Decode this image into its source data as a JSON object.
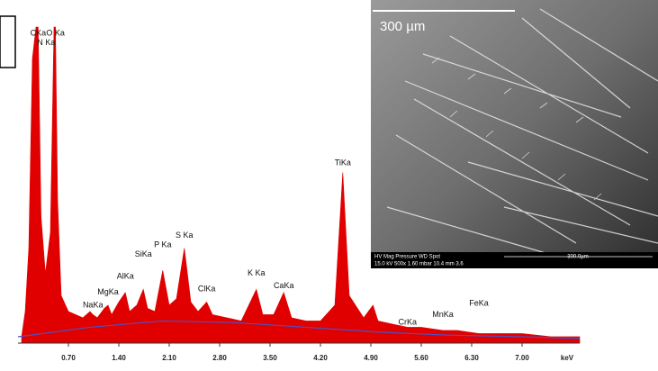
{
  "chart_data": {
    "type": "area",
    "x_label": "keV",
    "xlim": [
      0,
      7.8
    ],
    "ylim": [
      0,
      100
    ],
    "xticks": [
      {
        "value": 0.7,
        "label": "0.70"
      },
      {
        "value": 1.4,
        "label": "1.40"
      },
      {
        "value": 2.1,
        "label": "2.10"
      },
      {
        "value": 2.8,
        "label": "2.80"
      },
      {
        "value": 3.5,
        "label": "3.50"
      },
      {
        "value": 4.2,
        "label": "4.20"
      },
      {
        "value": 4.9,
        "label": "4.90"
      },
      {
        "value": 5.6,
        "label": "5.60"
      },
      {
        "value": 6.3,
        "label": "6.30"
      },
      {
        "value": 7.0,
        "label": "7.00"
      }
    ],
    "series": [
      {
        "type": "area",
        "color": "#e00000",
        "x": [
          0.05,
          0.1,
          0.15,
          0.2,
          0.25,
          0.28,
          0.32,
          0.38,
          0.45,
          0.5,
          0.52,
          0.55,
          0.6,
          0.7,
          0.8,
          0.9,
          1.0,
          1.04,
          1.1,
          1.2,
          1.25,
          1.3,
          1.4,
          1.49,
          1.55,
          1.65,
          1.74,
          1.8,
          1.9,
          2.01,
          2.1,
          2.2,
          2.31,
          2.4,
          2.5,
          2.62,
          2.7,
          2.9,
          3.1,
          3.31,
          3.4,
          3.55,
          3.69,
          3.8,
          4.0,
          4.2,
          4.4,
          4.51,
          4.6,
          4.8,
          4.93,
          5.0,
          5.2,
          5.41,
          5.6,
          5.9,
          6.1,
          6.4,
          6.7,
          7.0,
          7.4,
          7.8
        ],
        "values": [
          2,
          10,
          30,
          90,
          100,
          100,
          40,
          22,
          35,
          100,
          100,
          45,
          15,
          10,
          9,
          8,
          10,
          9,
          8,
          11,
          12,
          9,
          13,
          16,
          10,
          12,
          17,
          11,
          10,
          23,
          12,
          14,
          30,
          13,
          10,
          13,
          9,
          8,
          7,
          17,
          9,
          9,
          16,
          8,
          7,
          7,
          12,
          54,
          15,
          8,
          12,
          7,
          6,
          5,
          5,
          4,
          4,
          3,
          3,
          3,
          2,
          2
        ]
      },
      {
        "type": "line",
        "color": "#5050c0",
        "x": [
          0,
          1,
          2,
          3,
          4,
          5,
          6,
          7,
          7.8
        ],
        "values": [
          2,
          5,
          7,
          6.5,
          5,
          3.5,
          2.5,
          2,
          1.5
        ]
      }
    ],
    "annotations": [
      {
        "text": "CKa",
        "x": 0.28,
        "y": 98
      },
      {
        "text": "N Ka",
        "x": 0.39,
        "y": 95
      },
      {
        "text": "O Ka",
        "x": 0.52,
        "y": 98
      },
      {
        "text": "NaKa",
        "x": 1.04,
        "y": 12
      },
      {
        "text": "MgKa",
        "x": 1.25,
        "y": 16
      },
      {
        "text": "AlKa",
        "x": 1.49,
        "y": 21
      },
      {
        "text": "SiKa",
        "x": 1.74,
        "y": 28
      },
      {
        "text": "P Ka",
        "x": 2.01,
        "y": 31
      },
      {
        "text": "S Ka",
        "x": 2.31,
        "y": 34
      },
      {
        "text": "ClKa",
        "x": 2.62,
        "y": 17
      },
      {
        "text": "K Ka",
        "x": 3.31,
        "y": 22
      },
      {
        "text": "CaKa",
        "x": 3.69,
        "y": 18
      },
      {
        "text": "TiKa",
        "x": 4.51,
        "y": 57
      },
      {
        "text": "CrKa",
        "x": 5.41,
        "y": 6.5
      },
      {
        "text": "MnKa",
        "x": 5.9,
        "y": 9
      },
      {
        "text": "FeKa",
        "x": 6.4,
        "y": 12.5
      }
    ]
  },
  "inset": {
    "scale_label": "300 µm",
    "info_header": "HV Mag Pressure WD Spot",
    "info_values": "15.0 kV 500x 1.60 mbar 10.4 mm 3.6",
    "info_scale": "300.0µm"
  }
}
